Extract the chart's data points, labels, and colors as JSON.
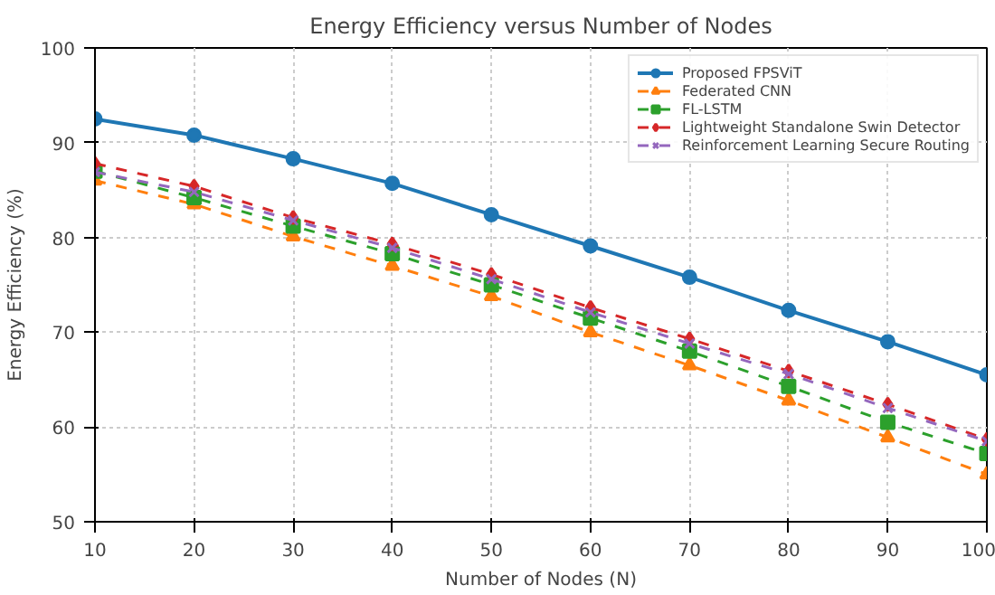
{
  "chart_data": {
    "type": "line",
    "title": "Energy Efficiency versus Number of Nodes",
    "xlabel": "Number of Nodes (N)",
    "ylabel": "Energy Efficiency (%)",
    "x": [
      10,
      20,
      30,
      40,
      50,
      60,
      70,
      80,
      90,
      100
    ],
    "xlim": [
      10,
      100
    ],
    "xticks": [
      10,
      20,
      30,
      40,
      50,
      60,
      70,
      80,
      90,
      100
    ],
    "ylim": [
      50,
      100
    ],
    "yticks": [
      50,
      60,
      70,
      80,
      90,
      100
    ],
    "grid": true,
    "legend": "top right",
    "series": [
      {
        "name": "Proposed FPSViT",
        "color": "#1f77b4",
        "marker": "circle",
        "line_style": "solid",
        "values": [
          92.5,
          90.8,
          88.3,
          85.7,
          82.4,
          79.1,
          75.8,
          72.3,
          69.0,
          65.5
        ]
      },
      {
        "name": "Federated CNN",
        "color": "#ff7f0e",
        "marker": "triangle",
        "line_style": "dashed",
        "values": [
          86.0,
          83.5,
          80.1,
          77.0,
          73.8,
          70.0,
          66.5,
          62.8,
          58.9,
          55.0
        ]
      },
      {
        "name": "FL-LSTM",
        "color": "#2ca02c",
        "marker": "square",
        "line_style": "dashed",
        "values": [
          87.0,
          84.2,
          81.2,
          78.3,
          75.0,
          71.5,
          68.0,
          64.3,
          60.5,
          57.2
        ]
      },
      {
        "name": "Lightweight Standalone Swin Detector",
        "color": "#d62728",
        "marker": "diamond",
        "line_style": "dashed",
        "values": [
          87.8,
          85.4,
          82.1,
          79.3,
          76.1,
          72.6,
          69.3,
          65.9,
          62.4,
          58.7
        ]
      },
      {
        "name": "Reinforcement Learning Secure Routing",
        "color": "#9467bd",
        "marker": "cross",
        "line_style": "dashed",
        "values": [
          86.9,
          84.8,
          81.8,
          78.9,
          75.6,
          72.1,
          68.8,
          65.6,
          62.0,
          58.5
        ]
      }
    ]
  }
}
